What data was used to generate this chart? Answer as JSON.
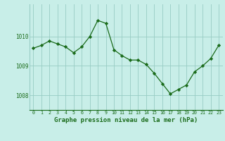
{
  "x": [
    0,
    1,
    2,
    3,
    4,
    5,
    6,
    7,
    8,
    9,
    10,
    11,
    12,
    13,
    14,
    15,
    16,
    17,
    18,
    19,
    20,
    21,
    22,
    23
  ],
  "y": [
    1009.6,
    1009.7,
    1009.85,
    1009.75,
    1009.65,
    1009.45,
    1009.65,
    1010.0,
    1010.55,
    1010.45,
    1009.55,
    1009.35,
    1009.2,
    1009.2,
    1009.05,
    1008.75,
    1008.4,
    1008.05,
    1008.2,
    1008.35,
    1008.8,
    1009.0,
    1009.25,
    1009.7
  ],
  "line_color": "#1a6b1a",
  "marker_color": "#1a6b1a",
  "bg_color": "#c8eee8",
  "grid_color": "#98ccc4",
  "axis_label_color": "#1a6b1a",
  "tick_color": "#1a6b1a",
  "xlabel": "Graphe pression niveau de la mer (hPa)",
  "yticks": [
    1008,
    1009,
    1010
  ],
  "ylim": [
    1007.5,
    1011.1
  ],
  "xlim": [
    -0.5,
    23.5
  ]
}
